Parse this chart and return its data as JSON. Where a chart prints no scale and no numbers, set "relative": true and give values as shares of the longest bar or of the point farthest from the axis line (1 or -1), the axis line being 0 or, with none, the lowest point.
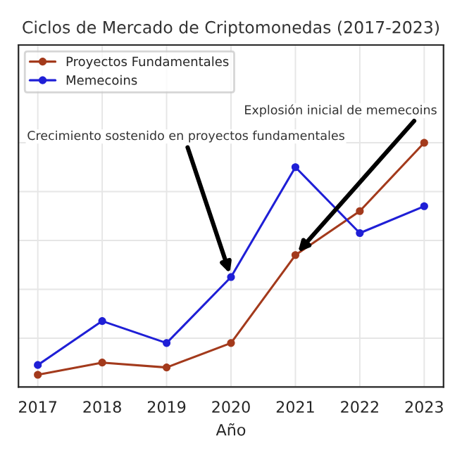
{
  "chart_data": {
    "type": "line",
    "title": "Ciclos de Mercado de Criptomonedas (2017-2023)",
    "xlabel": "Año",
    "x": [
      2017,
      2018,
      2019,
      2020,
      2021,
      2022,
      2023
    ],
    "xlim": [
      2016.7,
      2023.3
    ],
    "xticks": [
      2017,
      2018,
      2019,
      2020,
      2021,
      2022,
      2023
    ],
    "relative": true,
    "tick_labels": "x",
    "grid": true,
    "legend": "top left",
    "marker": "circle",
    "line_style": "solid",
    "series": [
      {
        "name": "Proyectos Fundamentales",
        "color": "#a33a1c",
        "values": [
          0.05,
          0.1,
          0.08,
          0.18,
          0.54,
          0.72,
          1.0
        ]
      },
      {
        "name": "Memecoins",
        "color": "#1f1fd6",
        "values": [
          0.09,
          0.27,
          0.18,
          0.45,
          0.9,
          0.63,
          0.74
        ]
      }
    ],
    "annotations": [
      {
        "text": "Crecimiento sostenido en proyectos fundamentales",
        "x": 2020,
        "y": 0.45
      },
      {
        "text": "Explosión inicial de memecoins",
        "x": 2021,
        "y": 0.54
      }
    ]
  }
}
